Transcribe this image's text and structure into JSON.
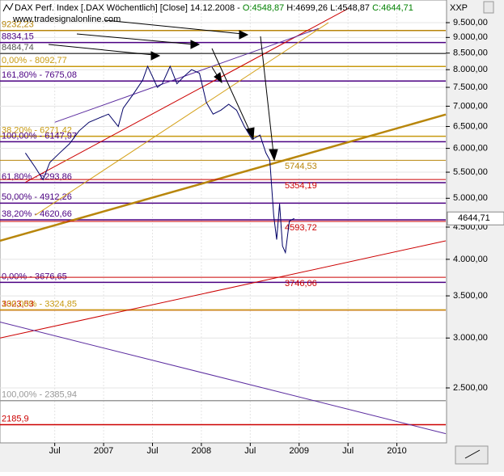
{
  "chart_data": {
    "type": "line",
    "title_parts": [
      {
        "text": "DAX Perf. Index [.DAX Wöchentlich] [Close] 14.12.2008 - ",
        "color": "#000000"
      },
      {
        "text": "O:4548,87",
        "color": "#008000"
      },
      {
        "text": " H:4699,26 L:4548,87 ",
        "color": "#000000"
      },
      {
        "text": "C:4644,71",
        "color": "#008000"
      }
    ],
    "source": "www.tradesignalonline.com",
    "axis_caption": "XXP",
    "log_scale": true,
    "grid": true,
    "ylim": [
      2045,
      10320
    ],
    "yticks": [
      {
        "value": 9500,
        "label": "9.500,00"
      },
      {
        "value": 9000,
        "label": "9.000,00"
      },
      {
        "value": 8500,
        "label": "8.500,00"
      },
      {
        "value": 8000,
        "label": "8.000,00"
      },
      {
        "value": 7500,
        "label": "7.500,00"
      },
      {
        "value": 7000,
        "label": "7.000,00"
      },
      {
        "value": 6500,
        "label": "6.500,00"
      },
      {
        "value": 6000,
        "label": "6.000,00"
      },
      {
        "value": 5500,
        "label": "5.500,00"
      },
      {
        "value": 5000,
        "label": "5.000,00"
      },
      {
        "value": 4500,
        "label": "4.500,00"
      },
      {
        "value": 4000,
        "label": "4.000,00"
      },
      {
        "value": 3500,
        "label": "3.500,00"
      },
      {
        "value": 3000,
        "label": "3.000,00"
      },
      {
        "value": 2500,
        "label": "2.500,00"
      }
    ],
    "xlim": [
      2005.94,
      2010.5
    ],
    "xticks": [
      {
        "value": 2006.5,
        "label": "Jul"
      },
      2007,
      {
        "value": 2007.5,
        "label": "Jul"
      },
      2008,
      {
        "value": 2008.5,
        "label": "Jul"
      },
      2009,
      {
        "value": 2009.5,
        "label": "Jul"
      },
      2010
    ],
    "series": [
      {
        "name": "DAX",
        "color": "#000066",
        "x": [
          2006.2,
          2006.3,
          2006.38,
          2006.45,
          2006.55,
          2006.65,
          2006.75,
          2006.85,
          2006.95,
          2007.05,
          2007.15,
          2007.2,
          2007.3,
          2007.4,
          2007.45,
          2007.5,
          2007.55,
          2007.6,
          2007.68,
          2007.75,
          2007.82,
          2007.9,
          2007.98,
          2008.05,
          2008.12,
          2008.2,
          2008.28,
          2008.36,
          2008.44,
          2008.52,
          2008.6,
          2008.66,
          2008.7,
          2008.74,
          2008.77,
          2008.8,
          2008.83,
          2008.86,
          2008.9,
          2008.95
        ],
        "values": [
          5900,
          5600,
          5350,
          5700,
          5900,
          6100,
          6400,
          6600,
          6700,
          6800,
          6500,
          6950,
          7300,
          7700,
          8100,
          7800,
          7500,
          7600,
          8100,
          7600,
          7800,
          8000,
          7900,
          7100,
          6800,
          6900,
          7050,
          6900,
          6500,
          6200,
          6300,
          5900,
          5750,
          4700,
          4300,
          4900,
          4200,
          4100,
          4600,
          4644.71
        ]
      }
    ],
    "last_value": {
      "value": 4644.71,
      "label": "4644,71"
    },
    "levels": [
      {
        "value": 9232.23,
        "label": "9232,23",
        "color": "#b8860b"
      },
      {
        "value": 8834.15,
        "label": "8834,15",
        "color": "#4b0082"
      },
      {
        "value": 8484.74,
        "label": "8484,74",
        "color": "#555555"
      },
      {
        "value": 8092.77,
        "label": "0,00% - 8092,77",
        "color": "#c89a10"
      },
      {
        "value": 7675.08,
        "label": "161,80% - 7675,08",
        "color": "#4b0082"
      },
      {
        "value": 6271.42,
        "label": "38,20% - 6271,42",
        "color": "#c89a10"
      },
      {
        "value": 6147.97,
        "label": "100,00% - 6147,97",
        "color": "#4b0082"
      },
      {
        "value": 5293.86,
        "label": "61,80% - 5293,86",
        "color": "#4b0082"
      },
      {
        "value": 4912.26,
        "label": "50,00% - 4912,26",
        "color": "#4b0082"
      },
      {
        "value": 4620.66,
        "label": "38,20% - 4620,66",
        "color": "#4b0082"
      },
      {
        "value": 3676.65,
        "label": "0,00% - 3676,65",
        "color": "#4b0082"
      },
      {
        "value": 3323.53,
        "label": "3323,53",
        "color": "#cc0000"
      },
      {
        "value": 3324.85,
        "label": "100,00% - 3324,85",
        "color": "#c89a10"
      },
      {
        "value": 2385.94,
        "label": "100,00% - 2385,94",
        "color": "#999999"
      },
      {
        "value": 2185.9,
        "label": "2185,9",
        "color": "#cc0000"
      }
    ],
    "annotations": [
      {
        "value": 5744.53,
        "label": "5744,53",
        "color": "#b8860b"
      },
      {
        "value": 5354.19,
        "label": "5354,19",
        "color": "#cc0000"
      },
      {
        "value": 4593.72,
        "label": "4593,72",
        "color": "#cc0000"
      },
      {
        "value": 3746.06,
        "label": "3746,06",
        "color": "#cc0000"
      }
    ],
    "trend_lines": [
      {
        "x": [
          2005.94,
          2010.5
        ],
        "values": [
          4280,
          6790
        ],
        "color": "#b8860b"
      },
      {
        "x": [
          2005.94,
          2010.5
        ],
        "values": [
          3000,
          4280
        ],
        "color": "#cc0000"
      },
      {
        "x": [
          2005.94,
          2010.5
        ],
        "values": [
          3180,
          2115
        ],
        "color": "#5b2c9f"
      },
      {
        "x": [
          2006.2,
          2009.5
        ],
        "values": [
          5300,
          10000
        ],
        "color": "#cc0000"
      },
      {
        "x": [
          2006.5,
          2009.2
        ],
        "values": [
          6600,
          9300
        ],
        "color": "#5b2c9f"
      },
      {
        "x": [
          2006.3,
          2009.3
        ],
        "values": [
          4700,
          9500
        ],
        "color": "#d4a017"
      }
    ]
  }
}
